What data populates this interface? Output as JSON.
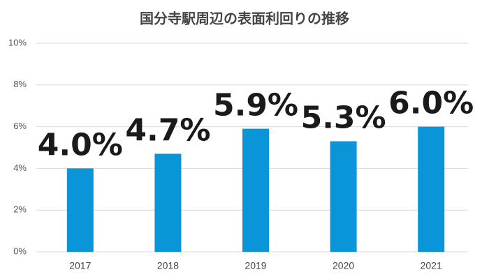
{
  "chart_data": {
    "type": "bar",
    "title": "国分寺駅周辺の表面利回りの推移",
    "categories": [
      "2017",
      "2018",
      "2019",
      "2020",
      "2021"
    ],
    "values": [
      4.0,
      4.7,
      5.9,
      5.3,
      6.0
    ],
    "value_labels": [
      "4.0%",
      "4.7%",
      "5.9%",
      "5.3%",
      "6.0%"
    ],
    "color": "#0a95d8",
    "ylim": [
      0,
      10
    ],
    "yticks": [
      {
        "value": 0,
        "label": "0%"
      },
      {
        "value": 2,
        "label": "2%"
      },
      {
        "value": 4,
        "label": "4%"
      },
      {
        "value": 6,
        "label": "6%"
      },
      {
        "value": 8,
        "label": "8%"
      },
      {
        "value": 10,
        "label": "10%"
      }
    ],
    "grid": true
  }
}
